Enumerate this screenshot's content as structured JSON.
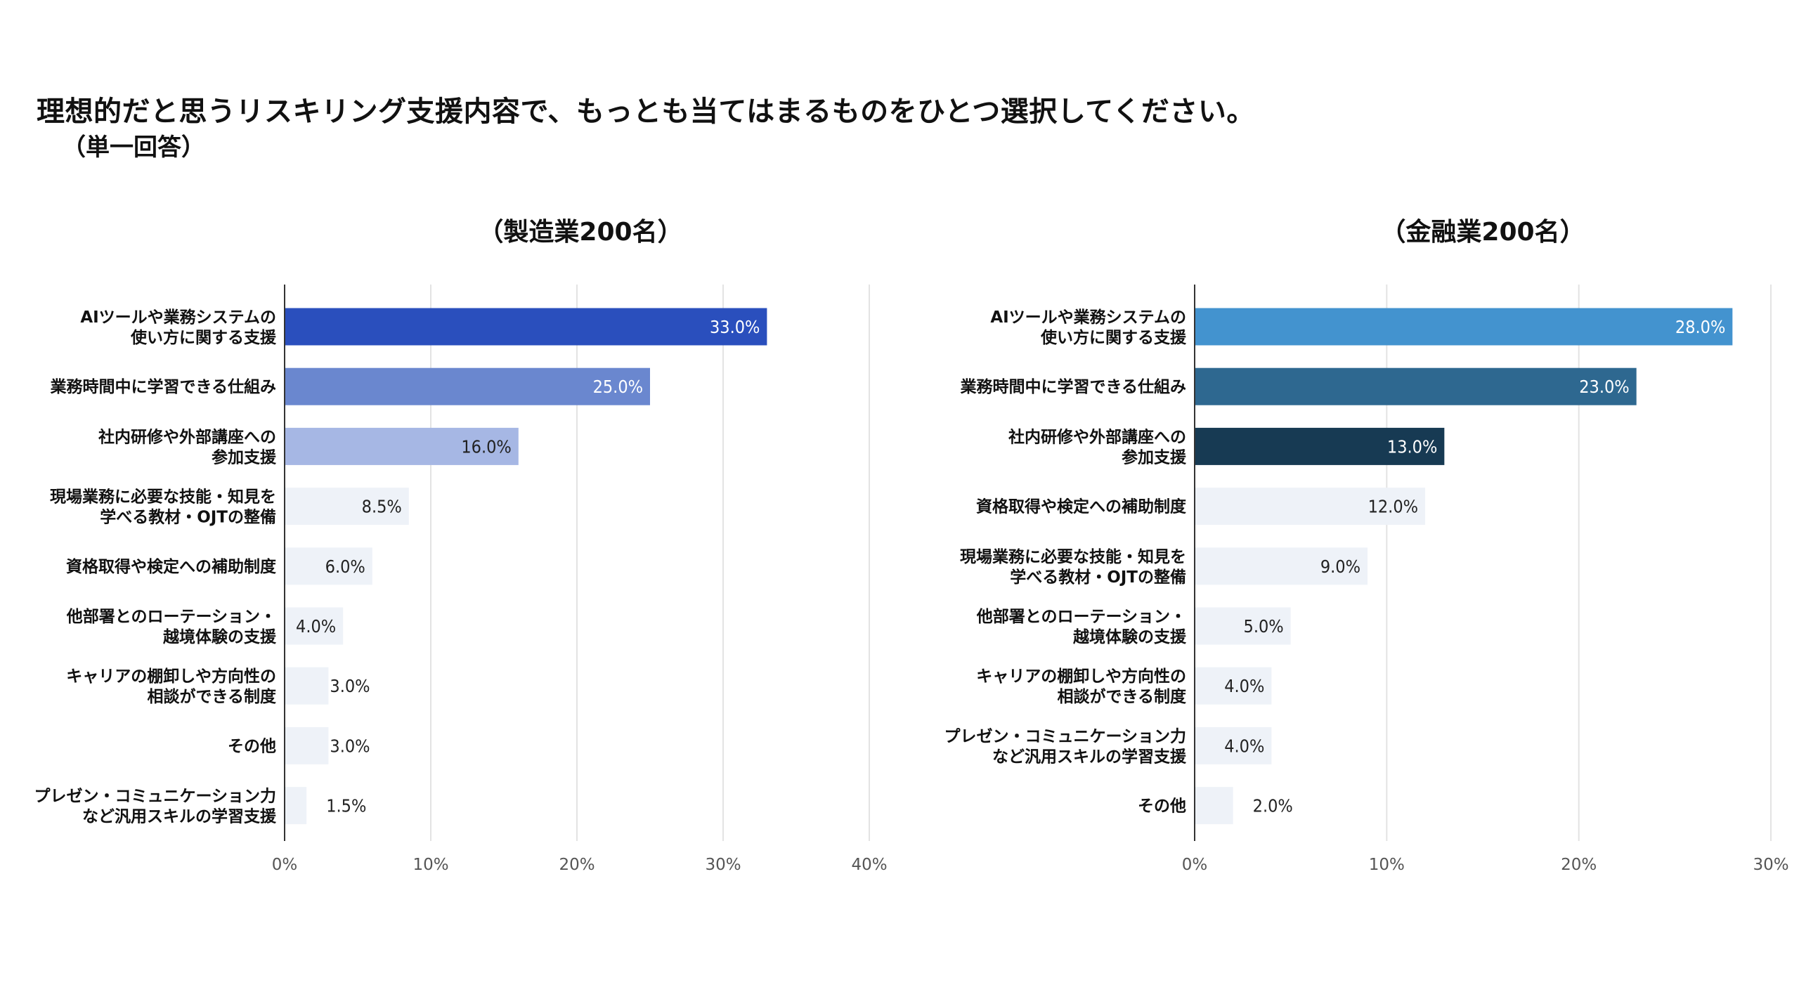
{
  "title": "理想的だと思うリスキリング支援内容で、もっとも当てはまるものをひとつ選択してください。",
  "subtitle": "（単一回答）",
  "chart_data": [
    {
      "type": "bar",
      "orientation": "horizontal",
      "title": "（製造業200名）",
      "categories": [
        [
          "AIツールや業務システムの",
          "使い方に関する支援"
        ],
        [
          "業務時間中に学習できる仕組み"
        ],
        [
          "社内研修や外部講座への",
          "参加支援"
        ],
        [
          "現場業務に必要な技能・知見を",
          "学べる教材・OJTの整備"
        ],
        [
          "資格取得や検定への補助制度"
        ],
        [
          "他部署とのローテーション・",
          "越境体験の支援"
        ],
        [
          "キャリアの棚卸しや方向性の",
          "相談ができる制度"
        ],
        [
          "その他"
        ],
        [
          "プレゼン・コミュニケーション力",
          "など汎用スキルの学習支援"
        ]
      ],
      "values": [
        33.0,
        25.0,
        16.0,
        8.5,
        6.0,
        4.0,
        3.0,
        3.0,
        1.5
      ],
      "value_labels": [
        "33.0%",
        "25.0%",
        "16.0%",
        "8.5%",
        "6.0%",
        "4.0%",
        "3.0%",
        "3.0%",
        "1.5%"
      ],
      "bar_colors": [
        "#2a4fbd",
        "#6a87cf",
        "#a6b7e4",
        "#eef2f8",
        "#eef2f8",
        "#eef2f8",
        "#eef2f8",
        "#eef2f8",
        "#eef2f8"
      ],
      "xlim": [
        0,
        40
      ],
      "xticks": [
        0,
        10,
        20,
        30,
        40
      ],
      "xtick_labels": [
        "0%",
        "10%",
        "20%",
        "30%",
        "40%"
      ],
      "grid": true
    },
    {
      "type": "bar",
      "orientation": "horizontal",
      "title": "（金融業200名）",
      "categories": [
        [
          "AIツールや業務システムの",
          "使い方に関する支援"
        ],
        [
          "業務時間中に学習できる仕組み"
        ],
        [
          "社内研修や外部講座への",
          "参加支援"
        ],
        [
          "資格取得や検定への補助制度"
        ],
        [
          "現場業務に必要な技能・知見を",
          "学べる教材・OJTの整備"
        ],
        [
          "他部署とのローテーション・",
          "越境体験の支援"
        ],
        [
          "キャリアの棚卸しや方向性の",
          "相談ができる制度"
        ],
        [
          "プレゼン・コミュニケーション力",
          "など汎用スキルの学習支援"
        ],
        [
          "その他"
        ]
      ],
      "values": [
        28.0,
        23.0,
        13.0,
        12.0,
        9.0,
        5.0,
        4.0,
        4.0,
        2.0
      ],
      "value_labels": [
        "28.0%",
        "23.0%",
        "13.0%",
        "12.0%",
        "9.0%",
        "5.0%",
        "4.0%",
        "4.0%",
        "2.0%"
      ],
      "bar_colors": [
        "#4393cf",
        "#2e6890",
        "#173a53",
        "#eef2f8",
        "#eef2f8",
        "#eef2f8",
        "#eef2f8",
        "#eef2f8",
        "#eef2f8"
      ],
      "xlim": [
        0,
        30
      ],
      "xticks": [
        0,
        10,
        20,
        30
      ],
      "xtick_labels": [
        "0%",
        "10%",
        "20%",
        "30%"
      ],
      "grid": true
    }
  ]
}
